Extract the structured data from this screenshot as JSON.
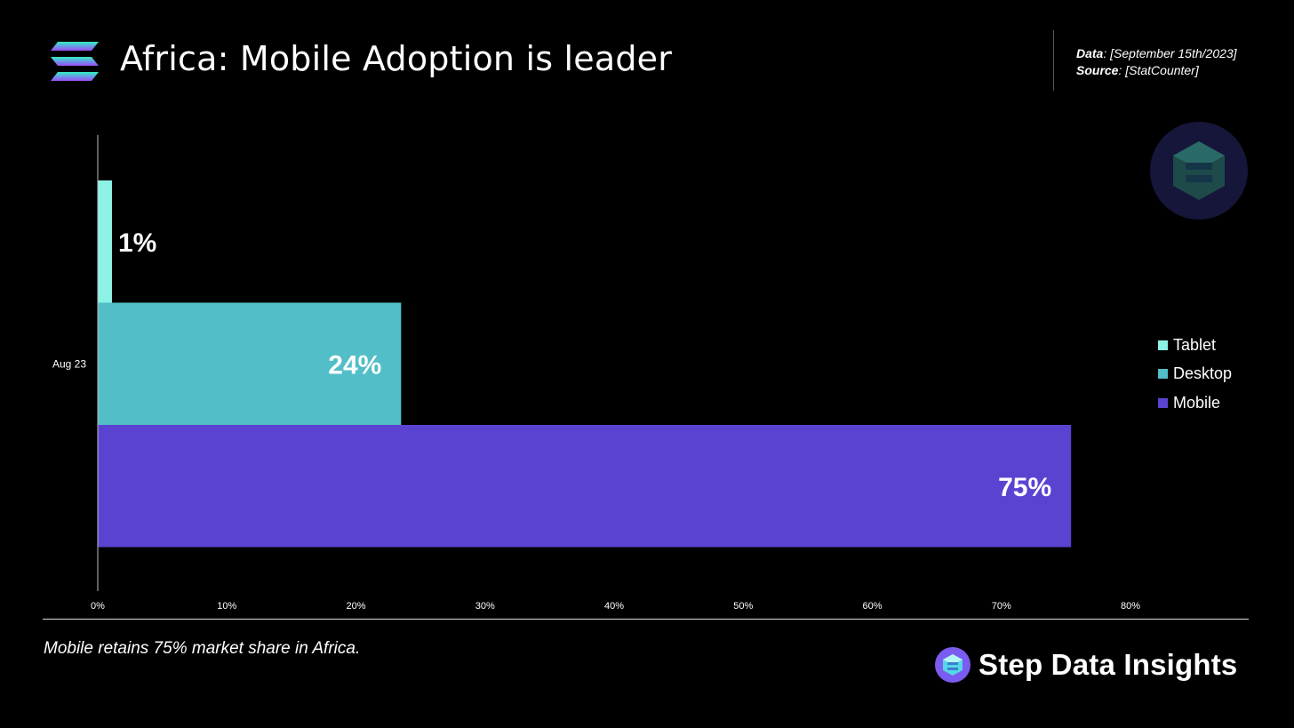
{
  "header": {
    "title": "Africa: Mobile Adoption is leader",
    "data_label": "Data",
    "data_value": ": [September 15th/2023]",
    "source_label": "Source",
    "source_value": ": [StatCounter]"
  },
  "chart_data": {
    "type": "bar",
    "orientation": "horizontal",
    "categories": [
      "Aug 23"
    ],
    "series": [
      {
        "name": "Tablet",
        "values": [
          1.1
        ],
        "label": "1%",
        "color": "#8cf2e6"
      },
      {
        "name": "Desktop",
        "values": [
          23.5
        ],
        "label": "24%",
        "color": "#52bec7"
      },
      {
        "name": "Mobile",
        "values": [
          75.4
        ],
        "label": "75%",
        "color": "#5b43d2"
      }
    ],
    "xlim": [
      0,
      80
    ],
    "xticks": [
      "0%",
      "10%",
      "20%",
      "30%",
      "40%",
      "50%",
      "60%",
      "70%",
      "80%"
    ],
    "legend_position": "right",
    "grid": false
  },
  "footer": {
    "caption": "Mobile retains 75% market share in Africa.",
    "brand": "Step Data Insights"
  },
  "colors": {
    "background": "#000000",
    "text": "#ffffff",
    "logo_top": "#2ff0c0",
    "logo_bottom": "#9a4cf0",
    "brand_circle": "#7b5cf0",
    "watermark_circle": "#16163a"
  },
  "icons": {
    "logo": "stacked-layers-logo",
    "watermark": "step-cube-icon",
    "brand": "step-cube-icon"
  }
}
